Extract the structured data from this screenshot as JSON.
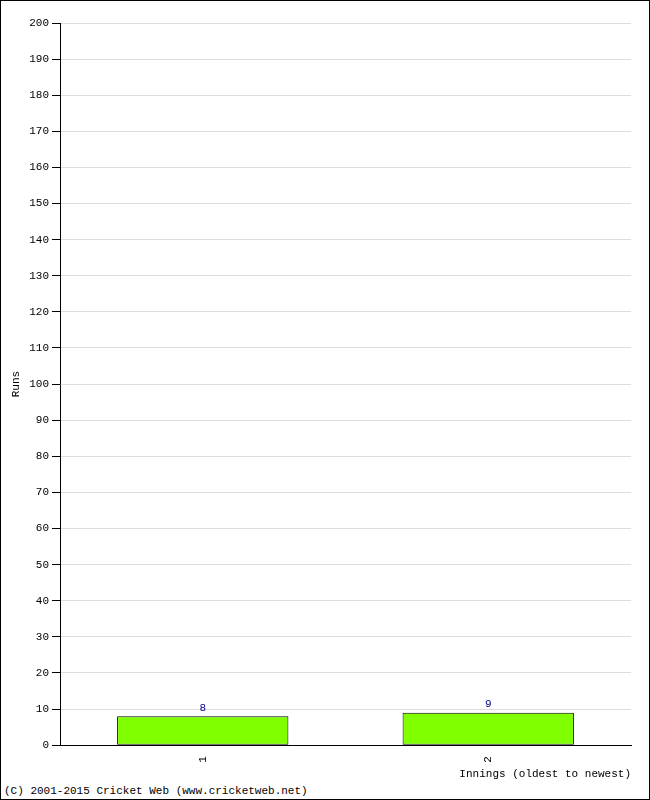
{
  "chart_data": {
    "type": "bar",
    "x_label": "Innings (oldest to newest)",
    "y_label": "Runs",
    "annotations": [
      "(C) 2001-2015 Cricket Web (www.cricketweb.net)"
    ],
    "categories": [
      "1",
      "2"
    ],
    "values": [
      8,
      9
    ],
    "color": "#80ff00",
    "ylim": [
      0,
      200
    ],
    "yticks": [
      0,
      10,
      20,
      30,
      40,
      50,
      60,
      70,
      80,
      90,
      100,
      110,
      120,
      130,
      140,
      150,
      160,
      170,
      180,
      190,
      200
    ],
    "grid": true,
    "data_labels": true
  }
}
